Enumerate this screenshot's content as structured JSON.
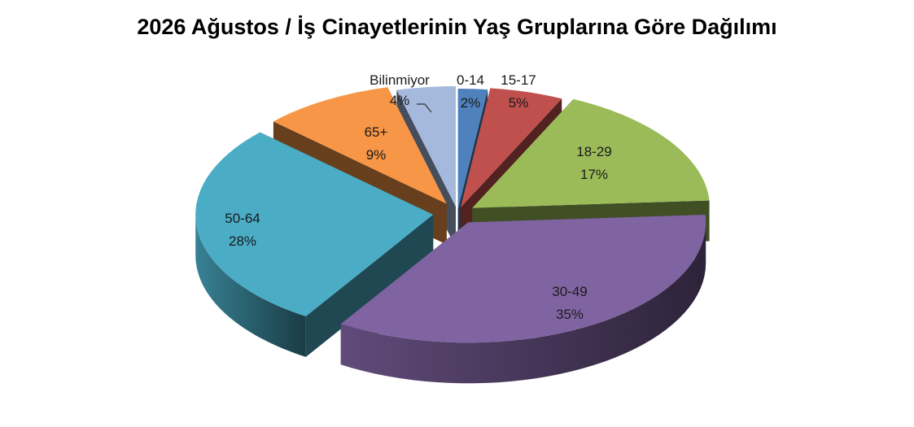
{
  "chart_data": {
    "type": "pie",
    "variant": "3d-exploded",
    "title": "2026 Ağustos / İş Cinayetlerinin Yaş Gruplarına Göre Dağılımı",
    "legend": "none",
    "slices": [
      {
        "name": "0-14",
        "label": "0-14",
        "value": 2,
        "value_label": "2%",
        "color": "#4f81bd"
      },
      {
        "name": "15-17",
        "label": "15-17",
        "value": 5,
        "value_label": "5%",
        "color": "#c0504d"
      },
      {
        "name": "18-29",
        "label": "18-29",
        "value": 17,
        "value_label": "17%",
        "color": "#9bbb59"
      },
      {
        "name": "30-49",
        "label": "30-49",
        "value": 35,
        "value_label": "35%",
        "color": "#8064a2"
      },
      {
        "name": "50-64",
        "label": "50-64",
        "value": 28,
        "value_label": "28%",
        "color": "#4bacc6"
      },
      {
        "name": "65+",
        "label": "65+",
        "value": 9,
        "value_label": "9%",
        "color": "#f79646"
      },
      {
        "name": "Bilinmiyor",
        "label": "Bilinmiyor",
        "value": 4,
        "value_label": "4%",
        "color": "#a5b9dd"
      }
    ]
  }
}
